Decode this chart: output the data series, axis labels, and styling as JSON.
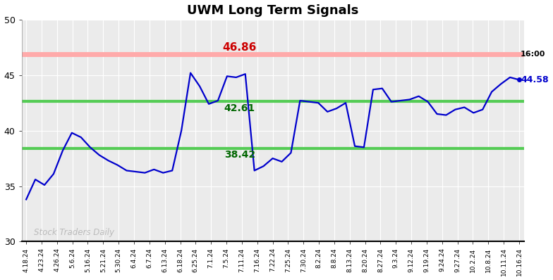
{
  "title": "UWM Long Term Signals",
  "ylim": [
    30,
    50
  ],
  "yticks": [
    30,
    35,
    40,
    45,
    50
  ],
  "red_line": 46.86,
  "green_line_upper": 42.61,
  "green_line_lower": 38.42,
  "label_46_86": "46.86",
  "label_42_61": "42.61",
  "label_38_42": "38.42",
  "last_time": "16:00",
  "last_price": "44.58",
  "watermark": "Stock Traders Daily",
  "line_color": "#0000cc",
  "red_line_color": "#ffaaaa",
  "red_text_color": "#cc0000",
  "green_line_color": "#55cc55",
  "green_text_color": "#006600",
  "background_color": "#ebebeb",
  "xtick_labels": [
    "4.18.24",
    "4.23.24",
    "4.26.24",
    "5.6.24",
    "5.16.24",
    "5.21.24",
    "5.30.24",
    "6.4.24",
    "6.7.24",
    "6.13.24",
    "6.18.24",
    "6.25.24",
    "7.1.24",
    "7.5.24",
    "7.11.24",
    "7.16.24",
    "7.22.24",
    "7.25.24",
    "7.30.24",
    "8.2.24",
    "8.8.24",
    "8.13.24",
    "8.20.24",
    "8.27.24",
    "9.3.24",
    "9.12.24",
    "9.19.24",
    "9.24.24",
    "9.27.24",
    "10.2.24",
    "10.8.24",
    "10.11.24",
    "10.16.24"
  ],
  "prices": [
    33.8,
    35.6,
    35.1,
    36.1,
    38.2,
    39.8,
    39.4,
    38.5,
    37.8,
    37.3,
    36.9,
    36.4,
    36.3,
    36.2,
    36.5,
    36.2,
    36.4,
    40.0,
    45.2,
    44.0,
    42.4,
    42.7,
    44.9,
    44.8,
    45.1,
    36.4,
    36.8,
    37.5,
    37.2,
    38.0,
    42.7,
    42.6,
    42.5,
    41.7,
    42.0,
    42.5,
    38.6,
    38.5,
    43.7,
    43.8,
    42.6,
    42.7,
    42.8,
    43.1,
    42.6,
    41.5,
    41.4,
    41.9,
    42.1,
    41.6,
    41.9,
    43.5,
    44.2,
    44.8,
    44.58
  ],
  "red_line_lw": 5,
  "green_line_lw": 3,
  "price_lw": 1.6
}
